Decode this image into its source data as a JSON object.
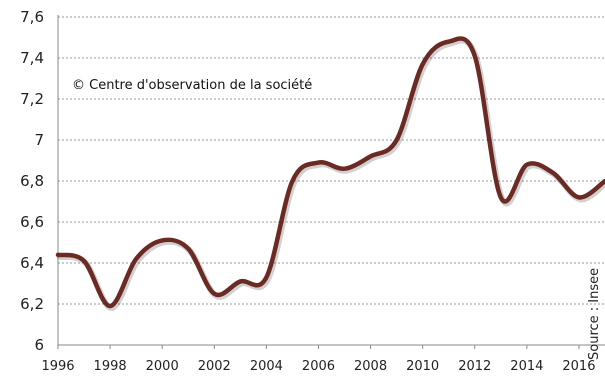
{
  "chart_data": {
    "type": "line",
    "title": "",
    "xlabel": "",
    "ylabel": "",
    "annotation": "© Centre d'observation de la société",
    "source": "Source : Insee",
    "xlim": [
      1996,
      2017
    ],
    "ylim": [
      6,
      7.6
    ],
    "yticks": [
      {
        "value": 6,
        "label": "6"
      },
      {
        "value": 6.2,
        "label": "6,2"
      },
      {
        "value": 6.4,
        "label": "6,4"
      },
      {
        "value": 6.6,
        "label": "6,6"
      },
      {
        "value": 6.8,
        "label": "6,8"
      },
      {
        "value": 7,
        "label": "7"
      },
      {
        "value": 7.2,
        "label": "7,2"
      },
      {
        "value": 7.4,
        "label": "7,4"
      },
      {
        "value": 7.6,
        "label": "7,6"
      }
    ],
    "xticks": [
      {
        "value": 1996,
        "label": "1996"
      },
      {
        "value": 1998,
        "label": "1998"
      },
      {
        "value": 2000,
        "label": "2000"
      },
      {
        "value": 2002,
        "label": "2002"
      },
      {
        "value": 2004,
        "label": "2004"
      },
      {
        "value": 2006,
        "label": "2006"
      },
      {
        "value": 2008,
        "label": "2008"
      },
      {
        "value": 2010,
        "label": "2010"
      },
      {
        "value": 2012,
        "label": "2012"
      },
      {
        "value": 2014,
        "label": "2014"
      },
      {
        "value": 2016,
        "label": "2016"
      }
    ],
    "grid": true,
    "series": [
      {
        "color": "#6b2a24",
        "x": [
          1996,
          1997,
          1998,
          1999,
          2000,
          2001,
          2002,
          2003,
          2004,
          2005,
          2006,
          2007,
          2008,
          2009,
          2010,
          2011,
          2012,
          2013,
          2014,
          2015,
          2016,
          2017
        ],
        "y": [
          6.44,
          6.41,
          6.19,
          6.42,
          6.51,
          6.47,
          6.25,
          6.31,
          6.33,
          6.8,
          6.89,
          6.86,
          6.92,
          7.0,
          7.37,
          7.48,
          7.41,
          6.72,
          6.88,
          6.84,
          6.72,
          6.8
        ]
      }
    ]
  }
}
